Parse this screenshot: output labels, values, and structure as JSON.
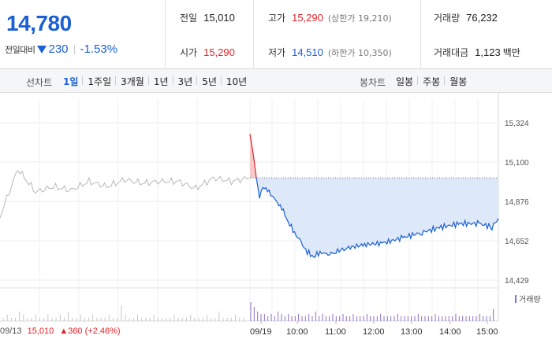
{
  "quote": {
    "price": "14,780",
    "change_label": "전일대비",
    "change_amount": "230",
    "change_rate": "-1.53%",
    "direction": "down"
  },
  "stats": {
    "prev_close_label": "전일",
    "prev_close": "15,010",
    "open_label": "시가",
    "open": "15,290",
    "high_label": "고가",
    "high": "15,290",
    "upper_limit_label": "상한가",
    "upper_limit": "19,210",
    "low_label": "저가",
    "low": "14,510",
    "lower_limit_label": "하한가",
    "lower_limit": "10,350",
    "volume_label": "거래량",
    "volume": "76,232",
    "amount_label": "거래대금",
    "amount": "1,123",
    "amount_unit": "백만"
  },
  "toolbar": {
    "line_chart_label": "선차트",
    "periods": [
      "1일",
      "1주일",
      "3개월",
      "1년",
      "3년",
      "5년",
      "10년"
    ],
    "active_period": "1일",
    "candle_chart_label": "봉차트",
    "candle_periods": [
      "일봉",
      "주봉",
      "월봉"
    ]
  },
  "prev_day": {
    "date": "09/13",
    "close": "15,010",
    "change": "▲360 (+2.46%)"
  },
  "colors": {
    "up": "#e0242c",
    "down": "#1a5fd4",
    "fill_down": "#dde8f8",
    "fill_up": "#f7caca",
    "prev_line": "#b8b8b8",
    "volume": "#8a70c8"
  },
  "chart_data": {
    "type": "line",
    "title": "",
    "ylim": [
      14429,
      15324
    ],
    "y_ticks": [
      "15,324",
      "15,100",
      "14,876",
      "14,652",
      "14,429"
    ],
    "x_ticks": [
      "09/13",
      "09/19",
      "10:00",
      "11:00",
      "12:00",
      "13:00",
      "14:00",
      "15:00"
    ],
    "reference_price": 15010,
    "series": [
      {
        "name": "",
        "x": [
          "09/13 09:00",
          "09/13 09:10",
          "09/13 09:30",
          "09/13 10:00",
          "09/13 10:30",
          "09/13 11:00",
          "09/13 11:30",
          "09/13 12:00",
          "09/13 12:30",
          "09/13 13:00",
          "09/13 13:30",
          "09/13 14:00",
          "09/13 14:30",
          "09/13 15:00",
          "09/13 15:30"
        ],
        "values": [
          14790,
          15060,
          14930,
          14960,
          14940,
          14990,
          14960,
          15000,
          14980,
          14990,
          14990,
          14950,
          15010,
          14990,
          15010
        ]
      },
      {
        "name": "",
        "x": [
          "09:00",
          "09:05",
          "09:10",
          "09:15",
          "09:20",
          "09:30",
          "09:40",
          "09:50",
          "10:00",
          "10:10",
          "10:20",
          "10:30",
          "10:40",
          "10:50",
          "11:00",
          "11:15",
          "11:30",
          "12:00",
          "12:30",
          "13:00",
          "13:30",
          "14:00",
          "14:30",
          "15:00",
          "15:20",
          "15:30"
        ],
        "values": [
          15260,
          15150,
          15010,
          14900,
          14960,
          14930,
          14880,
          14840,
          14760,
          14700,
          14640,
          14590,
          14560,
          14590,
          14570,
          14590,
          14610,
          14630,
          14640,
          14670,
          14700,
          14730,
          14750,
          14750,
          14730,
          14780
        ]
      }
    ],
    "volume": {
      "ylabel": "거래량",
      "prev_day": [
        1,
        2,
        1,
        1,
        3,
        2,
        1,
        1,
        2,
        1,
        1,
        2,
        1,
        1,
        2,
        1,
        3,
        1,
        1,
        2,
        1,
        1,
        2,
        1,
        1,
        1,
        2,
        1,
        1,
        5,
        2,
        1,
        1,
        2,
        1,
        1,
        1,
        2,
        1,
        1,
        1,
        1,
        2,
        1,
        1,
        1,
        2,
        1,
        1,
        1,
        2,
        1,
        1,
        3,
        1,
        1,
        1,
        2,
        1,
        1
      ],
      "today": [
        8,
        6,
        4,
        3,
        3,
        2,
        3,
        2,
        4,
        3,
        2,
        3,
        2,
        2,
        3,
        2,
        2,
        3,
        2,
        4,
        2,
        3,
        2,
        2,
        3,
        2,
        2,
        3,
        2,
        2,
        3,
        2,
        2,
        2,
        3,
        2,
        2,
        2,
        3,
        2,
        2,
        2,
        2,
        3,
        2,
        2,
        2,
        2,
        2,
        3,
        2,
        2,
        2,
        2,
        3,
        2,
        2,
        2,
        2,
        2,
        3,
        2,
        2,
        2,
        2,
        2,
        2,
        3,
        2,
        2,
        2,
        5
      ]
    }
  }
}
